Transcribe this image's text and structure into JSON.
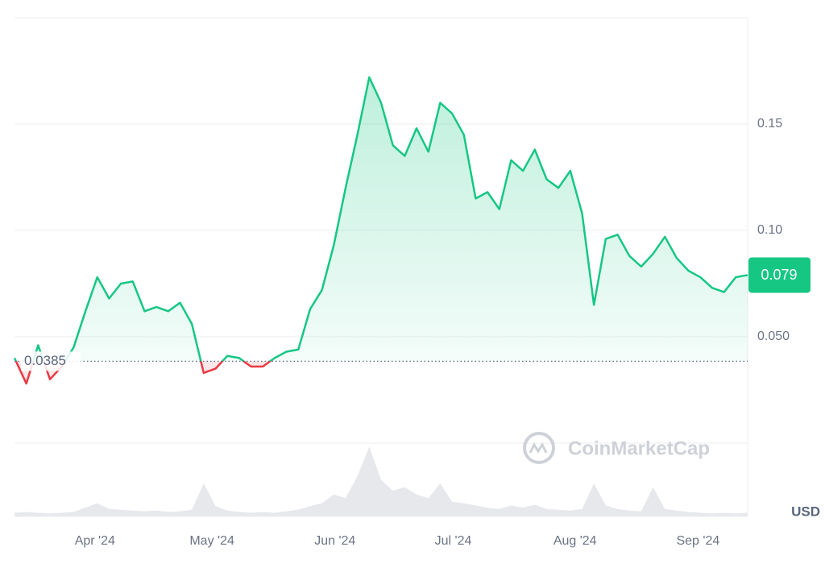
{
  "chart_data": {
    "type": "line",
    "series": [
      {
        "name": "Price",
        "color": "#16c784",
        "below_color": "#ea3943",
        "values": [
          0.04,
          0.028,
          0.046,
          0.03,
          0.036,
          0.045,
          0.062,
          0.078,
          0.068,
          0.075,
          0.076,
          0.062,
          0.064,
          0.062,
          0.066,
          0.056,
          0.033,
          0.035,
          0.041,
          0.04,
          0.036,
          0.036,
          0.04,
          0.043,
          0.044,
          0.063,
          0.072,
          0.093,
          0.12,
          0.145,
          0.172,
          0.16,
          0.14,
          0.135,
          0.148,
          0.137,
          0.16,
          0.155,
          0.145,
          0.115,
          0.118,
          0.11,
          0.133,
          0.128,
          0.138,
          0.124,
          0.12,
          0.128,
          0.108,
          0.065,
          0.096,
          0.098,
          0.088,
          0.083,
          0.089,
          0.097,
          0.087,
          0.081,
          0.078,
          0.073,
          0.071,
          0.078,
          0.079
        ]
      }
    ],
    "volume": {
      "color": "#e6e8ec",
      "values": [
        5,
        6,
        5,
        4,
        5,
        6,
        12,
        18,
        10,
        9,
        8,
        7,
        8,
        6,
        7,
        9,
        45,
        14,
        8,
        6,
        5,
        6,
        5,
        7,
        9,
        14,
        18,
        30,
        25,
        55,
        95,
        50,
        35,
        40,
        30,
        25,
        45,
        20,
        18,
        15,
        12,
        10,
        15,
        12,
        16,
        10,
        9,
        8,
        10,
        45,
        15,
        10,
        8,
        7,
        40,
        10,
        8,
        6,
        5,
        4,
        5,
        4,
        5
      ],
      "ylim": [
        0,
        100
      ]
    },
    "xlim": [
      0,
      62
    ],
    "xticks": [
      {
        "value": 6.8,
        "label": "Apr '24"
      },
      {
        "value": 16.7,
        "label": "May '24"
      },
      {
        "value": 27.1,
        "label": "Jun '24"
      },
      {
        "value": 37.1,
        "label": "Jul '24"
      },
      {
        "value": 47.4,
        "label": "Aug '24"
      },
      {
        "value": 57.8,
        "label": "Sep '24"
      }
    ],
    "ylim": [
      0,
      0.2
    ],
    "yticks": [
      {
        "value": 0.05,
        "label": "0.050"
      },
      {
        "value": 0.1,
        "label": "0.10"
      },
      0.15
    ],
    "baseline": 0.0385,
    "current_price": 0.079,
    "currency": "USD",
    "watermark": "CoinMarketCap",
    "grid": true
  }
}
